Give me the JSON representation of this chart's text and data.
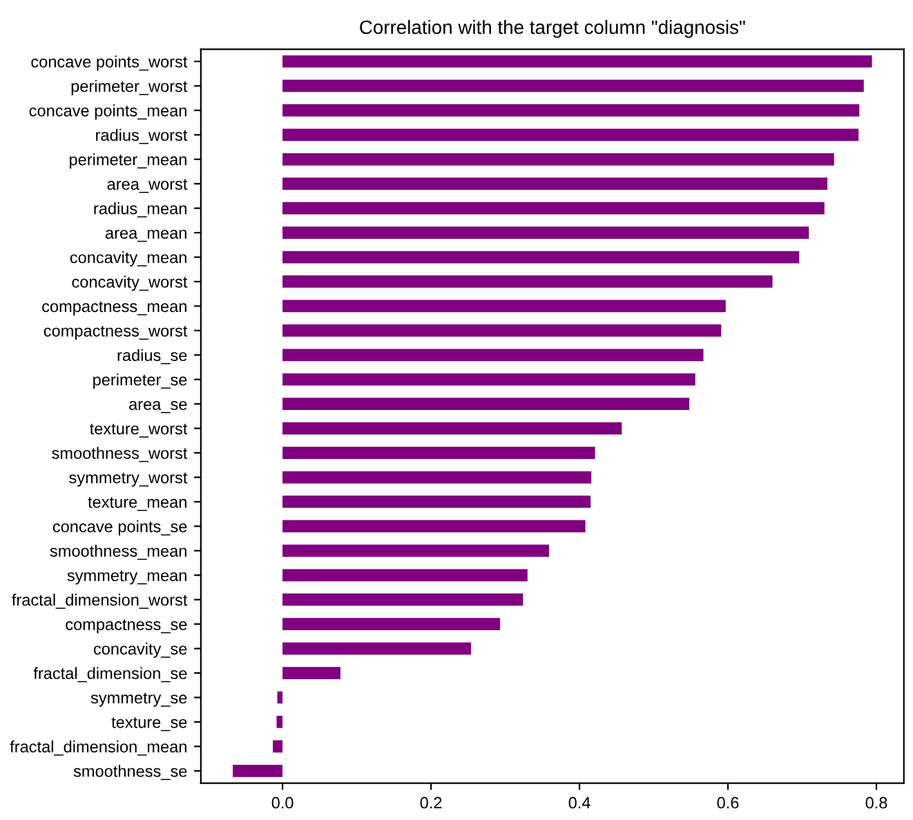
{
  "chart_data": {
    "type": "bar",
    "orientation": "horizontal",
    "title": "Correlation with the target column \"diagnosis\"",
    "categories": [
      "concave points_worst",
      "perimeter_worst",
      "concave points_mean",
      "radius_worst",
      "perimeter_mean",
      "area_worst",
      "radius_mean",
      "area_mean",
      "concavity_mean",
      "concavity_worst",
      "compactness_mean",
      "compactness_worst",
      "radius_se",
      "perimeter_se",
      "area_se",
      "texture_worst",
      "smoothness_worst",
      "symmetry_worst",
      "texture_mean",
      "concave points_se",
      "smoothness_mean",
      "symmetry_mean",
      "fractal_dimension_worst",
      "compactness_se",
      "concavity_se",
      "fractal_dimension_se",
      "symmetry_se",
      "texture_se",
      "fractal_dimension_mean",
      "smoothness_se"
    ],
    "values": [
      0.794,
      0.783,
      0.777,
      0.776,
      0.743,
      0.734,
      0.73,
      0.709,
      0.696,
      0.66,
      0.597,
      0.591,
      0.567,
      0.556,
      0.548,
      0.457,
      0.421,
      0.416,
      0.415,
      0.408,
      0.359,
      0.33,
      0.324,
      0.293,
      0.254,
      0.078,
      -0.007,
      -0.008,
      -0.013,
      -0.067
    ],
    "color": "#800080",
    "xlim": [
      -0.11,
      0.837
    ],
    "xticks": [
      {
        "value": 0,
        "label": "0.0"
      },
      {
        "value": 0.2,
        "label": "0.2"
      },
      {
        "value": 0.4,
        "label": "0.4"
      },
      {
        "value": 0.6,
        "label": "0.6"
      },
      {
        "value": 0.8,
        "label": "0.8"
      }
    ],
    "grid": false,
    "legend": false
  }
}
